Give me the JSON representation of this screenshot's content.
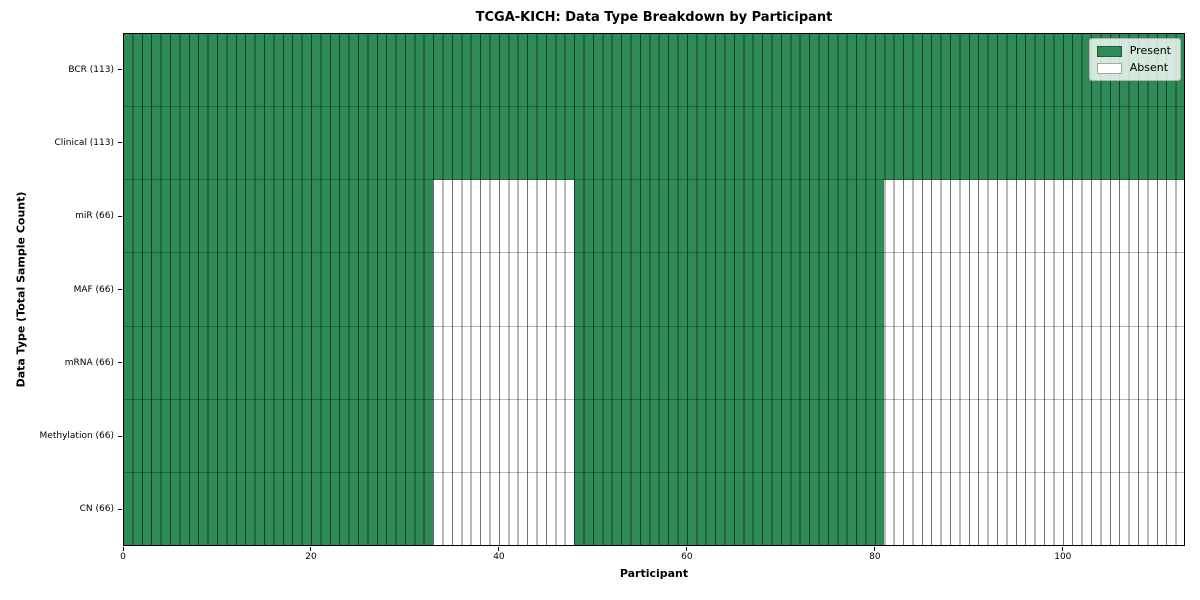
{
  "chart_data": {
    "type": "heatmap",
    "title": "TCGA-KICH: Data Type Breakdown by Participant",
    "xlabel": "Participant",
    "ylabel": "Data Type (Total Sample Count)",
    "x_range": [
      0,
      113
    ],
    "n_participants": 113,
    "x_ticks": [
      0,
      20,
      40,
      60,
      80,
      100
    ],
    "grid": "cell-borders",
    "legend_position": "upper-right-inside",
    "colors": {
      "present": "#2e8b57",
      "absent": "#ffffff"
    },
    "legend": [
      {
        "label": "Present",
        "color": "#2e8b57"
      },
      {
        "label": "Absent",
        "color": "#ffffff"
      }
    ],
    "rows": [
      {
        "label": "BCR (113)",
        "data_type": "BCR",
        "total_sample_count": 113,
        "present_ranges": [
          [
            0,
            113
          ]
        ]
      },
      {
        "label": "Clinical (113)",
        "data_type": "Clinical",
        "total_sample_count": 113,
        "present_ranges": [
          [
            0,
            113
          ]
        ]
      },
      {
        "label": "miR (66)",
        "data_type": "miR",
        "total_sample_count": 66,
        "present_ranges": [
          [
            0,
            33
          ],
          [
            48,
            81
          ]
        ]
      },
      {
        "label": "MAF (66)",
        "data_type": "MAF",
        "total_sample_count": 66,
        "present_ranges": [
          [
            0,
            33
          ],
          [
            48,
            81
          ]
        ]
      },
      {
        "label": "mRNA (66)",
        "data_type": "mRNA",
        "total_sample_count": 66,
        "present_ranges": [
          [
            0,
            33
          ],
          [
            48,
            81
          ]
        ]
      },
      {
        "label": "Methylation (66)",
        "data_type": "Methylation",
        "total_sample_count": 66,
        "present_ranges": [
          [
            0,
            33
          ],
          [
            48,
            81
          ]
        ]
      },
      {
        "label": "CN (66)",
        "data_type": "CN",
        "total_sample_count": 66,
        "present_ranges": [
          [
            0,
            33
          ],
          [
            48,
            81
          ]
        ]
      }
    ]
  }
}
